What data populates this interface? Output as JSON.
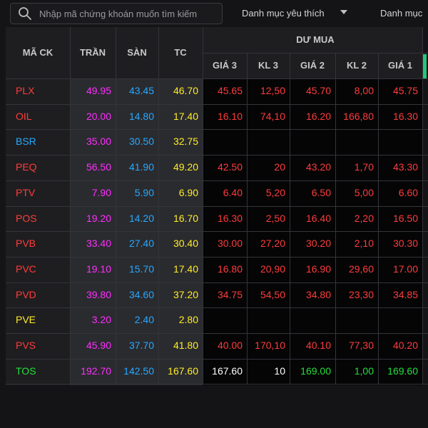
{
  "search": {
    "placeholder": "Nhập mã chứng khoán muốn tìm kiếm"
  },
  "menu": {
    "watchlist_label": "Danh mục yêu thích",
    "watchlist_label_2": "Danh mục"
  },
  "table": {
    "headers": {
      "symbol": "MÃ CK",
      "ceiling": "TRẦN",
      "floor": "SÀN",
      "ref": "TC",
      "buy_group": "DƯ MUA",
      "p3": "GIÁ 3",
      "v3": "KL 3",
      "p2": "GIÁ 2",
      "v2": "KL 2",
      "p1": "GIÁ 1"
    },
    "rows": [
      {
        "symbol": "PLX",
        "ceiling": "49.95",
        "floor": "43.45",
        "ref": "46.70",
        "p3": "45.65",
        "v3": "12,50",
        "p2": "45.70",
        "v2": "8,00",
        "p1": "45.75",
        "sym_color": "red",
        "buy_color": "red"
      },
      {
        "symbol": "OIL",
        "ceiling": "20.00",
        "floor": "14.80",
        "ref": "17.40",
        "p3": "16.10",
        "v3": "74,10",
        "p2": "16.20",
        "v2": "166,80",
        "p1": "16.30",
        "sym_color": "red",
        "buy_color": "red"
      },
      {
        "symbol": "BSR",
        "ceiling": "35.00",
        "floor": "30.50",
        "ref": "32.75",
        "p3": "",
        "v3": "",
        "p2": "",
        "v2": "",
        "p1": "",
        "sym_color": "cyan",
        "buy_color": "red"
      },
      {
        "symbol": "PEQ",
        "ceiling": "56.50",
        "floor": "41.90",
        "ref": "49.20",
        "p3": "42.50",
        "v3": "20",
        "p2": "43.20",
        "v2": "1,70",
        "p1": "43.30",
        "sym_color": "red",
        "buy_color": "red"
      },
      {
        "symbol": "PTV",
        "ceiling": "7.90",
        "floor": "5.90",
        "ref": "6.90",
        "p3": "6.40",
        "v3": "5,20",
        "p2": "6.50",
        "v2": "5,00",
        "p1": "6.60",
        "sym_color": "red",
        "buy_color": "red"
      },
      {
        "symbol": "POS",
        "ceiling": "19.20",
        "floor": "14.20",
        "ref": "16.70",
        "p3": "16.30",
        "v3": "2,50",
        "p2": "16.40",
        "v2": "2,20",
        "p1": "16.50",
        "sym_color": "red",
        "buy_color": "red"
      },
      {
        "symbol": "PVB",
        "ceiling": "33.40",
        "floor": "27.40",
        "ref": "30.40",
        "p3": "30.00",
        "v3": "27,20",
        "p2": "30.20",
        "v2": "2,10",
        "p1": "30.30",
        "sym_color": "red",
        "buy_color": "red"
      },
      {
        "symbol": "PVC",
        "ceiling": "19.10",
        "floor": "15.70",
        "ref": "17.40",
        "p3": "16.80",
        "v3": "20,90",
        "p2": "16.90",
        "v2": "29,60",
        "p1": "17.00",
        "sym_color": "red",
        "buy_color": "red"
      },
      {
        "symbol": "PVD",
        "ceiling": "39.80",
        "floor": "34.60",
        "ref": "37.20",
        "p3": "34.75",
        "v3": "54,50",
        "p2": "34.80",
        "v2": "23,30",
        "p1": "34.85",
        "sym_color": "red",
        "buy_color": "red"
      },
      {
        "symbol": "PVE",
        "ceiling": "3.20",
        "floor": "2.40",
        "ref": "2.80",
        "p3": "",
        "v3": "",
        "p2": "",
        "v2": "",
        "p1": "",
        "sym_color": "yellow",
        "buy_color": "red"
      },
      {
        "symbol": "PVS",
        "ceiling": "45.90",
        "floor": "37.70",
        "ref": "41.80",
        "p3": "40.00",
        "v3": "170,10",
        "p2": "40.10",
        "v2": "77,30",
        "p1": "40.20",
        "sym_color": "red",
        "buy_color": "red"
      },
      {
        "symbol": "TOS",
        "ceiling": "192.70",
        "floor": "142.50",
        "ref": "167.60",
        "p3": "167.60",
        "v3": "10",
        "p2": "169.00",
        "v2": "1,00",
        "p1": "169.60",
        "sym_color": "green",
        "buy_color": "mixed"
      }
    ],
    "colors": {
      "red": "#ff3b3b",
      "pink": "#ff2fff",
      "cyan": "#27a8ff",
      "yellow": "#ffec27",
      "green": "#22e03a",
      "white": "#ffffff",
      "accent_right_edge": "#1fc97a"
    }
  }
}
